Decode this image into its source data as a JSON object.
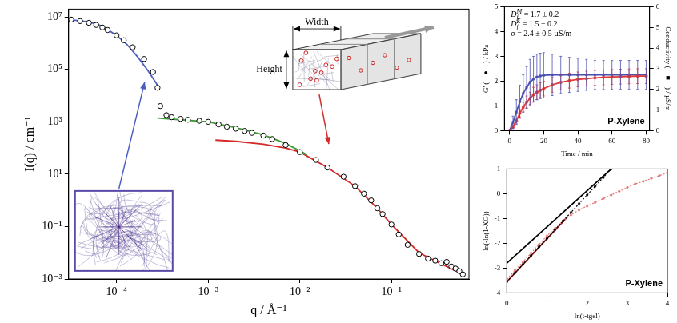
{
  "chart_data": [
    {
      "type": "scatter",
      "log": true,
      "grid": false,
      "x_label": "q / Å⁻¹",
      "y_label": "I(q) / cm⁻¹",
      "xlim": [
        3e-05,
        0.7
      ],
      "ylim": [
        0.001,
        20000000
      ],
      "xticks": [
        {
          "value": 0.0001,
          "label": "10⁻⁴"
        },
        {
          "value": 0.001,
          "label": "10⁻³"
        },
        {
          "value": 0.01,
          "label": "10⁻²"
        },
        {
          "value": 0.1,
          "label": "10⁻¹"
        }
      ],
      "yticks": [
        {
          "value": 0.001,
          "label": "10⁻³"
        },
        {
          "value": 0.1,
          "label": "10⁻¹"
        },
        {
          "value": 10,
          "label": "10¹"
        },
        {
          "value": 1000,
          "label": "10³"
        },
        {
          "value": 100000,
          "label": "10⁵"
        },
        {
          "value": 10000000,
          "label": "10⁷"
        }
      ],
      "annotations": [
        "Width",
        "Height"
      ],
      "series": [
        {
          "type": "scatter",
          "marker": "open_circle",
          "color": "#000000",
          "x": [
            3.2e-05,
            4e-05,
            5e-05,
            6e-05,
            7e-05,
            8e-05,
            0.0001,
            0.00012,
            0.00015,
            0.0002,
            0.00025,
            0.00028,
            0.0003,
            0.00035,
            0.0004,
            0.0005,
            0.0006,
            0.0008,
            0.001,
            0.0013,
            0.0016,
            0.002,
            0.0025,
            0.003,
            0.004,
            0.005,
            0.007,
            0.01,
            0.015,
            0.02,
            0.03,
            0.04,
            0.05,
            0.06,
            0.07,
            0.08,
            0.1,
            0.12,
            0.15,
            0.2,
            0.25,
            0.3,
            0.35,
            0.4,
            0.45,
            0.5,
            0.55,
            0.6
          ],
          "values": [
            8000000,
            7000000,
            6000000,
            5000000,
            4000000,
            3200000,
            2000000,
            1300000,
            700000,
            250000,
            80000,
            20000,
            4000,
            1800,
            1500,
            1300,
            1200,
            1100,
            1000,
            800,
            650,
            550,
            450,
            380,
            300,
            220,
            130,
            70,
            35,
            18,
            8,
            3.5,
            1.8,
            1,
            0.5,
            0.3,
            0.12,
            0.05,
            0.02,
            0.009,
            0.006,
            0.005,
            0.004,
            0.0045,
            0.003,
            0.0025,
            0.002,
            0.0015
          ]
        },
        {
          "type": "line",
          "marker": "none",
          "color": "#4b5dbf",
          "x": [
            3e-05,
            5e-05,
            7e-05,
            0.0001,
            0.00013,
            0.00017,
            0.00022,
            0.00028
          ],
          "values": [
            8000000,
            6500000,
            4500000,
            2000000,
            900000,
            300000,
            90000,
            25000
          ]
        },
        {
          "type": "line",
          "marker": "none",
          "color": "#3c9b32",
          "x": [
            0.00028,
            0.0005,
            0.001,
            0.002,
            0.004,
            0.007,
            0.012
          ],
          "values": [
            1400,
            1200,
            1000,
            600,
            320,
            150,
            55
          ]
        },
        {
          "type": "line",
          "marker": "none",
          "color": "#d42a2a",
          "x": [
            0.0012,
            0.002,
            0.004,
            0.007,
            0.01,
            0.02,
            0.04,
            0.07,
            0.1,
            0.2,
            0.4,
            0.6
          ],
          "values": [
            200,
            180,
            140,
            100,
            70,
            18,
            3.5,
            0.5,
            0.12,
            0.01,
            0.003,
            0.0015
          ]
        }
      ]
    },
    {
      "type": "line",
      "grid": false,
      "title": "P-Xylene",
      "x_label": "Time / min",
      "y_label": "G' (—●—) / kPa",
      "y2_label": "Conductivity (—■—) / µS/m",
      "xlim": [
        -3,
        82
      ],
      "xticks": [
        0,
        20,
        40,
        60,
        80
      ],
      "ylim": [
        0,
        5
      ],
      "yticks": [
        0,
        1,
        2,
        3,
        4,
        5
      ],
      "y2lim": [
        0,
        6
      ],
      "y2ticks": [
        0,
        1,
        2,
        3,
        4,
        5,
        6
      ],
      "annotations": [
        {
          "base": "D",
          "sub": "f",
          "sup": "M",
          "text": " = 1.7 ± 0.2"
        },
        {
          "base": "D",
          "sub": "f",
          "sup": "E",
          "text": " = 1.5 ± 0.2"
        },
        {
          "text": "σ = 2.4 ± 0.5 µS/m"
        }
      ],
      "series": [
        {
          "type": "line",
          "marker": "circle",
          "color": "#e03a3a",
          "x": [
            0,
            2,
            4,
            6,
            8,
            10,
            12,
            14,
            16,
            18,
            20,
            25,
            30,
            35,
            40,
            45,
            50,
            55,
            60,
            65,
            70,
            75,
            80
          ],
          "values": [
            0,
            0.15,
            0.4,
            0.7,
            0.95,
            1.15,
            1.3,
            1.45,
            1.55,
            1.63,
            1.7,
            1.85,
            1.95,
            2.02,
            2.07,
            2.1,
            2.13,
            2.15,
            2.17,
            2.18,
            2.19,
            2.2,
            2.2
          ],
          "errors": [
            0,
            0.05,
            0.1,
            0.15,
            0.2,
            0.25,
            0.25,
            0.3,
            0.3,
            0.3,
            0.3,
            0.3,
            0.3,
            0.3,
            0.3,
            0.3,
            0.3,
            0.3,
            0.3,
            0.3,
            0.3,
            0.3,
            0.3
          ]
        },
        {
          "type": "line",
          "marker": "square",
          "color": "#4b4fb0",
          "axis": "y2",
          "x": [
            0,
            2,
            4,
            6,
            8,
            10,
            12,
            14,
            16,
            18,
            20,
            25,
            30,
            35,
            40,
            45,
            50,
            55,
            60,
            65,
            70,
            75,
            80
          ],
          "values": [
            0,
            0.4,
            0.9,
            1.4,
            1.8,
            2.1,
            2.35,
            2.5,
            2.6,
            2.65,
            2.68,
            2.7,
            2.7,
            2.7,
            2.7,
            2.7,
            2.7,
            2.7,
            2.7,
            2.7,
            2.7,
            2.7,
            2.7
          ],
          "errors": [
            0,
            0.3,
            0.6,
            0.8,
            0.9,
            1.0,
            1.1,
            1.1,
            1.1,
            1.1,
            1.1,
            1.0,
            0.9,
            0.85,
            0.8,
            0.75,
            0.7,
            0.7,
            0.7,
            0.7,
            0.7,
            0.7,
            0.7
          ]
        }
      ]
    },
    {
      "type": "scatter",
      "grid": false,
      "title": "P-Xylene",
      "x_label": "ln(t-tgel)",
      "y_label": "ln(-ln(1-XG))",
      "xlim": [
        0,
        4
      ],
      "xticks": [
        0,
        1,
        2,
        3,
        4
      ],
      "ylim": [
        -4,
        1
      ],
      "yticks": [
        -4,
        -3,
        -2,
        -1,
        0,
        1
      ],
      "series": [
        {
          "type": "line",
          "marker": "dot",
          "line_style": "dotted",
          "color": "#000000",
          "x": [
            0,
            0.2,
            0.4,
            0.6,
            0.8,
            1.0,
            1.2,
            1.4,
            1.6,
            1.8,
            2.0,
            2.2,
            2.4,
            2.6
          ],
          "values": [
            -3.55,
            -3.2,
            -2.85,
            -2.5,
            -2.15,
            -1.8,
            -1.45,
            -1.1,
            -0.75,
            -0.4,
            -0.05,
            0.3,
            0.65,
            1.0
          ]
        },
        {
          "type": "line",
          "marker": "none",
          "color": "#000000",
          "x": [
            0,
            2.6
          ],
          "values": [
            -2.8,
            1.0
          ]
        },
        {
          "type": "line",
          "marker": "dot",
          "line_style": "dotted",
          "color": "#e87878",
          "x": [
            0,
            0.2,
            0.4,
            0.6,
            0.8,
            1.0,
            1.2,
            1.4,
            1.6,
            1.8,
            2.0,
            2.2,
            2.4,
            2.6,
            2.8,
            3.0,
            3.2,
            3.4,
            3.6,
            3.8,
            4.0
          ],
          "values": [
            -3.45,
            -3.1,
            -2.75,
            -2.4,
            -2.05,
            -1.7,
            -1.4,
            -1.1,
            -0.85,
            -0.65,
            -0.5,
            -0.35,
            -0.2,
            -0.05,
            0.1,
            0.25,
            0.4,
            0.5,
            0.62,
            0.73,
            0.85
          ]
        },
        {
          "type": "line",
          "marker": "none",
          "color": "#7a1010",
          "x": [
            0,
            1.5
          ],
          "values": [
            -3.55,
            -0.95
          ]
        }
      ]
    }
  ]
}
